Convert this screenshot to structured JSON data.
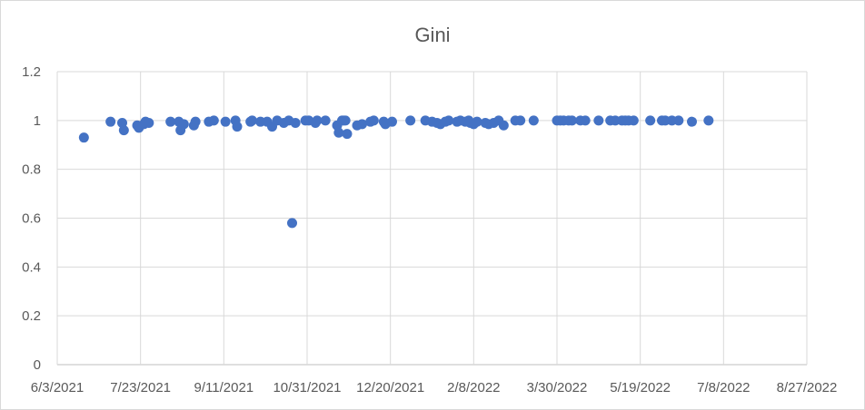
{
  "chart_data": {
    "type": "scatter",
    "title": "Gini",
    "xlabel": "",
    "ylabel": "",
    "x_ticks": [
      "6/3/2021",
      "7/23/2021",
      "9/11/2021",
      "10/31/2021",
      "12/20/2021",
      "2/8/2022",
      "3/30/2022",
      "5/19/2022",
      "7/8/2022",
      "8/27/2022"
    ],
    "y_ticks": [
      "0",
      "0.2",
      "0.4",
      "0.6",
      "0.8",
      "1",
      "1.2"
    ],
    "xlim": [
      "2021-06-03",
      "2022-08-27"
    ],
    "ylim": [
      0,
      1.2
    ],
    "grid": true,
    "legend": "none",
    "color": "#4472c4",
    "series": [
      {
        "points": [
          [
            "2021-06-19",
            0.93
          ],
          [
            "2021-07-05",
            0.995
          ],
          [
            "2021-07-12",
            0.99
          ],
          [
            "2021-07-13",
            0.96
          ],
          [
            "2021-07-21",
            0.98
          ],
          [
            "2021-07-22",
            0.97
          ],
          [
            "2021-07-25",
            0.985
          ],
          [
            "2021-07-26",
            0.995
          ],
          [
            "2021-07-28",
            0.99
          ],
          [
            "2021-08-10",
            0.995
          ],
          [
            "2021-08-15",
            0.995
          ],
          [
            "2021-08-16",
            0.96
          ],
          [
            "2021-08-18",
            0.985
          ],
          [
            "2021-08-24",
            0.98
          ],
          [
            "2021-08-25",
            0.995
          ],
          [
            "2021-09-02",
            0.995
          ],
          [
            "2021-09-05",
            1.0
          ],
          [
            "2021-09-12",
            0.995
          ],
          [
            "2021-09-18",
            1.0
          ],
          [
            "2021-09-19",
            0.975
          ],
          [
            "2021-09-27",
            0.995
          ],
          [
            "2021-09-28",
            1.0
          ],
          [
            "2021-10-03",
            0.995
          ],
          [
            "2021-10-07",
            0.995
          ],
          [
            "2021-10-10",
            0.975
          ],
          [
            "2021-10-13",
            1.0
          ],
          [
            "2021-10-17",
            0.99
          ],
          [
            "2021-10-20",
            1.0
          ],
          [
            "2021-10-22",
            0.58
          ],
          [
            "2021-10-24",
            0.99
          ],
          [
            "2021-10-30",
            1.0
          ],
          [
            "2021-11-01",
            1.0
          ],
          [
            "2021-11-05",
            0.99
          ],
          [
            "2021-11-06",
            1.0
          ],
          [
            "2021-11-11",
            1.0
          ],
          [
            "2021-11-18",
            0.98
          ],
          [
            "2021-11-19",
            0.95
          ],
          [
            "2021-11-21",
            1.0
          ],
          [
            "2021-11-22",
            1.0
          ],
          [
            "2021-11-23",
            1.0
          ],
          [
            "2021-11-24",
            0.945
          ],
          [
            "2021-11-30",
            0.98
          ],
          [
            "2021-12-03",
            0.985
          ],
          [
            "2021-12-08",
            0.995
          ],
          [
            "2021-12-10",
            1.0
          ],
          [
            "2021-12-16",
            0.995
          ],
          [
            "2021-12-17",
            0.985
          ],
          [
            "2021-12-21",
            0.995
          ],
          [
            "2022-01-01",
            1.0
          ],
          [
            "2022-01-10",
            1.0
          ],
          [
            "2022-01-14",
            0.995
          ],
          [
            "2022-01-17",
            0.99
          ],
          [
            "2022-01-19",
            0.985
          ],
          [
            "2022-01-22",
            0.995
          ],
          [
            "2022-01-24",
            1.0
          ],
          [
            "2022-01-29",
            0.995
          ],
          [
            "2022-01-31",
            1.0
          ],
          [
            "2022-02-03",
            0.995
          ],
          [
            "2022-02-05",
            1.0
          ],
          [
            "2022-02-06",
            0.99
          ],
          [
            "2022-02-08",
            0.985
          ],
          [
            "2022-02-10",
            0.995
          ],
          [
            "2022-02-15",
            0.99
          ],
          [
            "2022-02-17",
            0.985
          ],
          [
            "2022-02-20",
            0.99
          ],
          [
            "2022-02-23",
            1.0
          ],
          [
            "2022-02-26",
            0.98
          ],
          [
            "2022-03-05",
            1.0
          ],
          [
            "2022-03-08",
            1.0
          ],
          [
            "2022-03-16",
            1.0
          ],
          [
            "2022-03-30",
            1.0
          ],
          [
            "2022-04-01",
            1.0
          ],
          [
            "2022-04-03",
            1.0
          ],
          [
            "2022-04-06",
            1.0
          ],
          [
            "2022-04-08",
            1.0
          ],
          [
            "2022-04-13",
            1.0
          ],
          [
            "2022-04-16",
            1.0
          ],
          [
            "2022-04-24",
            1.0
          ],
          [
            "2022-05-01",
            1.0
          ],
          [
            "2022-05-04",
            1.0
          ],
          [
            "2022-05-08",
            1.0
          ],
          [
            "2022-05-10",
            1.0
          ],
          [
            "2022-05-12",
            1.0
          ],
          [
            "2022-05-15",
            1.0
          ],
          [
            "2022-05-25",
            1.0
          ],
          [
            "2022-06-01",
            1.0
          ],
          [
            "2022-06-03",
            1.0
          ],
          [
            "2022-06-07",
            1.0
          ],
          [
            "2022-06-11",
            1.0
          ],
          [
            "2022-06-19",
            0.995
          ],
          [
            "2022-06-29",
            1.0
          ]
        ]
      }
    ]
  }
}
